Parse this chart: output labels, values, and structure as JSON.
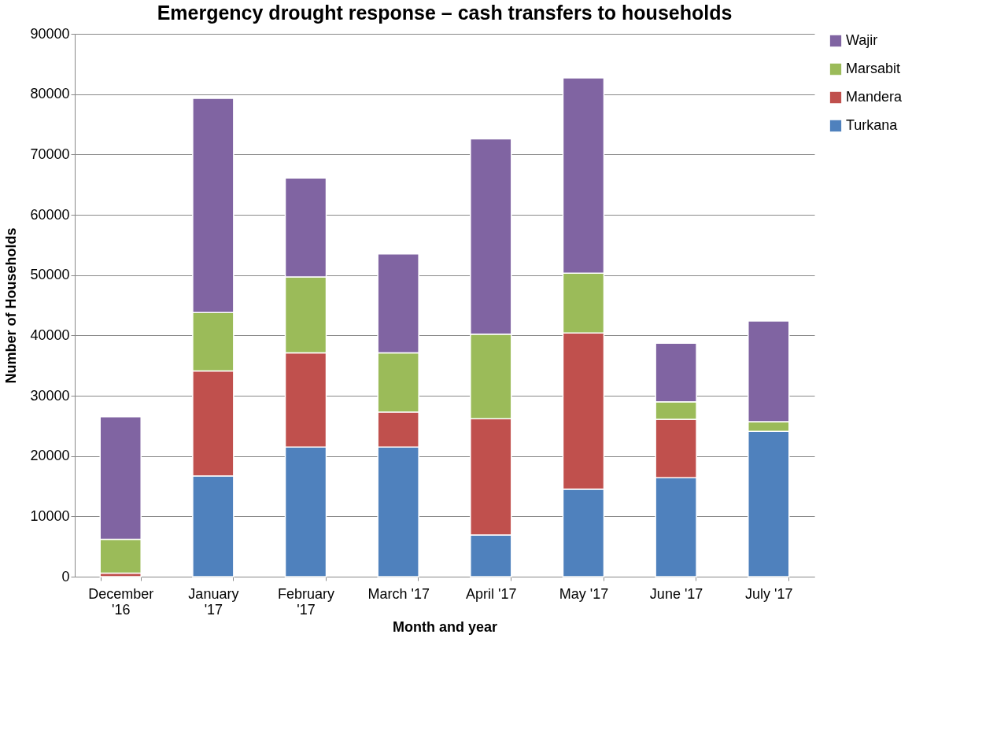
{
  "chart_data": {
    "type": "bar",
    "title": "Emergency drought response – cash transfers to households",
    "xlabel": "Month and year",
    "ylabel": "Number of Households",
    "categories": [
      "December '16",
      "January '17",
      "February '17",
      "March '17",
      "April '17",
      "May '17",
      "June '17",
      "July '17"
    ],
    "stacked": true,
    "series": [
      {
        "name": "Turkana",
        "color": "#4f81bd",
        "values": [
          0,
          16700,
          21500,
          21500,
          6900,
          14500,
          16400,
          24100
        ]
      },
      {
        "name": "Mandera",
        "color": "#c0504d",
        "values": [
          600,
          17400,
          15600,
          5800,
          19300,
          25900,
          9700,
          0
        ]
      },
      {
        "name": "Marsabit",
        "color": "#9bbb59",
        "values": [
          5600,
          9700,
          12600,
          9800,
          14000,
          9900,
          2900,
          1600
        ]
      },
      {
        "name": "Wajir",
        "color": "#8064a2",
        "values": [
          20300,
          35500,
          16400,
          16400,
          32400,
          32400,
          9700,
          16700
        ]
      }
    ],
    "ylim": [
      0,
      90000
    ],
    "yticks": [
      0,
      10000,
      20000,
      30000,
      40000,
      50000,
      60000,
      70000,
      80000,
      90000
    ],
    "grid": "y",
    "legend": "right"
  }
}
